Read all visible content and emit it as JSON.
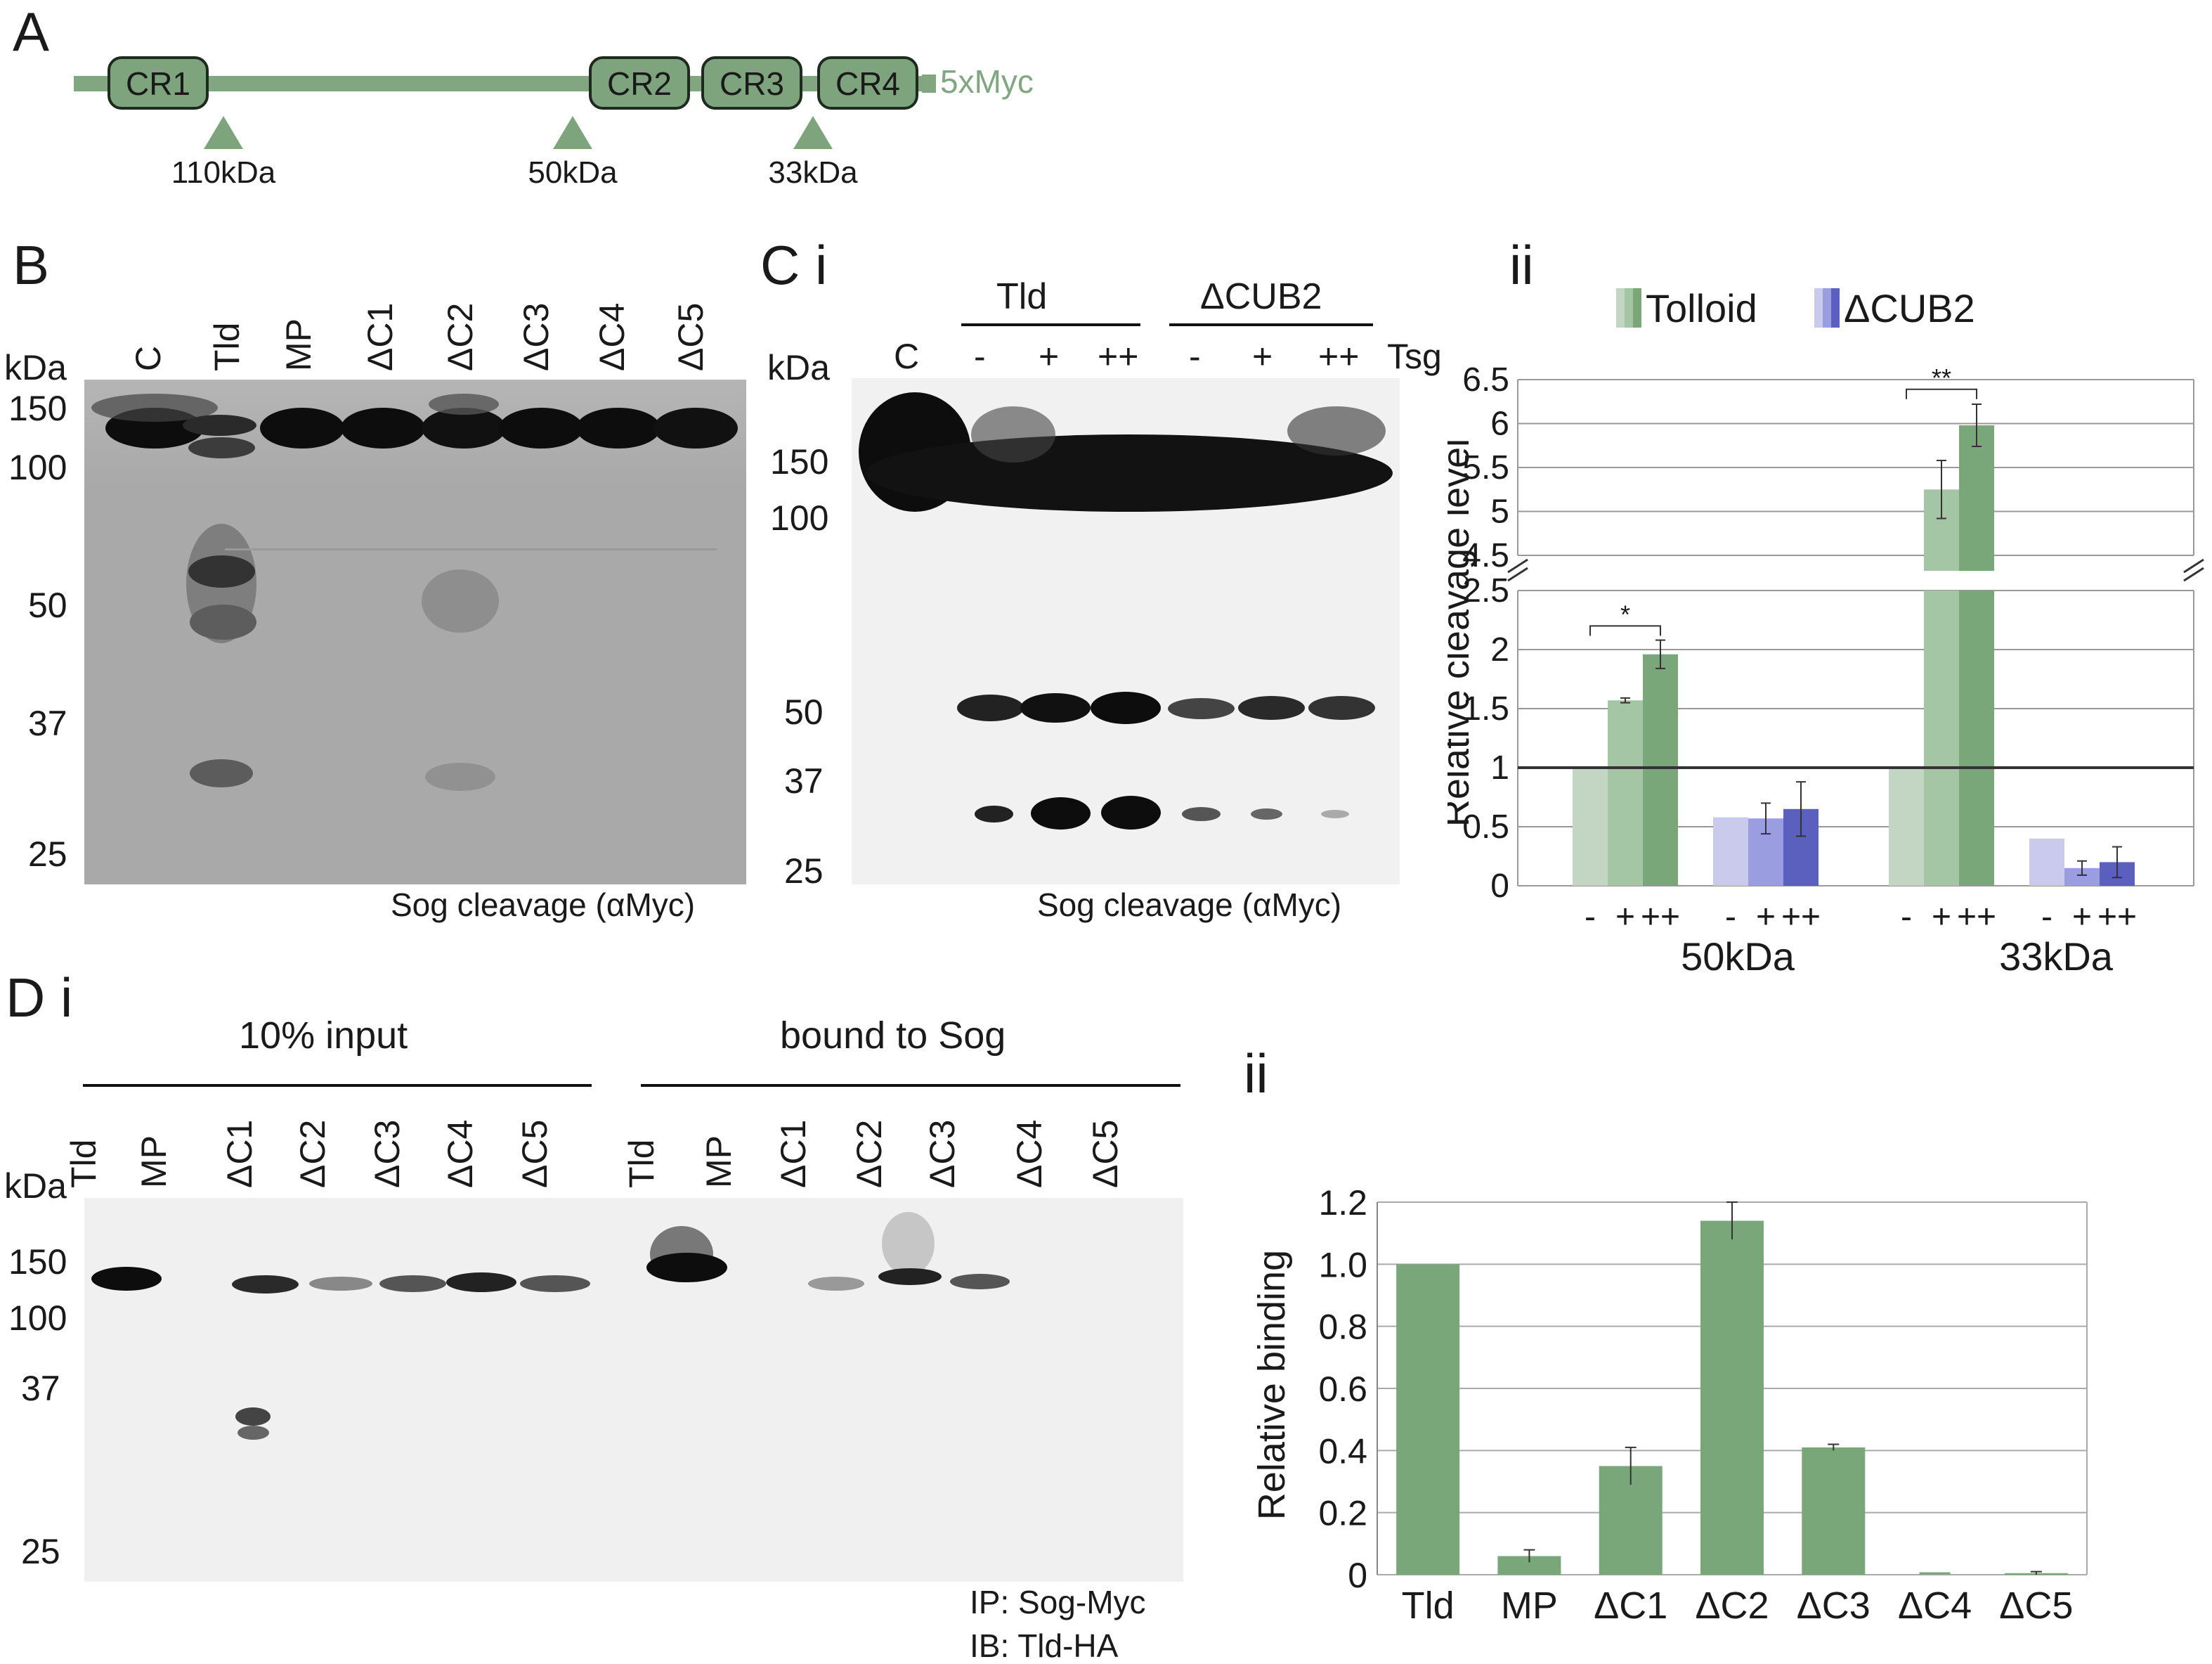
{
  "panelA": {
    "letter": "A",
    "domains": [
      "CR1",
      "CR2",
      "CR3",
      "CR4"
    ],
    "tag": "5xMyc",
    "sites": [
      "110kDa",
      "50kDa",
      "33kDa"
    ]
  },
  "panelB": {
    "letter": "B",
    "kda": "kDa",
    "lanes": [
      "C",
      "Tld",
      "MP",
      "ΔC1",
      "ΔC2",
      "ΔC3",
      "ΔC4",
      "ΔC5"
    ],
    "markers": [
      "150",
      "100",
      "50",
      "37",
      "25"
    ],
    "caption": "Sog cleavage (αMyc)"
  },
  "panelCi": {
    "letter": "C i",
    "kda": "kDa",
    "group1": "Tld",
    "group2": "ΔCUB2",
    "lanes": [
      "C",
      "-",
      "+",
      "++",
      "-",
      "+",
      "++"
    ],
    "tsg": "Tsg",
    "markers": [
      "150",
      "100",
      "50",
      "37",
      "25"
    ],
    "caption": "Sog cleavage (αMyc)"
  },
  "panelCii": {
    "letter": "ii",
    "legend": [
      "Tolloid",
      "ΔCUB2"
    ],
    "ylabel": "Relative cleavage level",
    "yticks_upper": [
      "6.5",
      "6",
      "5.5",
      "5",
      "4.5"
    ],
    "yticks_lower": [
      "2.5",
      "2",
      "1.5",
      "1",
      "0.5",
      "0"
    ],
    "sig1": "*",
    "sig2": "**",
    "xlabels": [
      "-",
      "+",
      "++",
      "-",
      "+",
      "++",
      "-",
      "+",
      "++",
      "-",
      "+",
      "++"
    ],
    "groups": [
      "50kDa",
      "33kDa"
    ]
  },
  "panelDi": {
    "letter": "D i",
    "group1": "10% input",
    "group2": "bound to Sog",
    "kda": "kDa",
    "lanes": [
      "Tld",
      "MP",
      "ΔC1",
      "ΔC2",
      "ΔC3",
      "ΔC4",
      "ΔC5",
      "Tld",
      "MP",
      "ΔC1",
      "ΔC2",
      "ΔC3",
      "ΔC4",
      "ΔC5"
    ],
    "markers": [
      "150",
      "100",
      "37",
      "25"
    ],
    "caption1": "IP: Sog-Myc",
    "caption2": "IB: Tld-HA"
  },
  "panelDii": {
    "letter": "ii",
    "ylabel": "Relative binding"
  },
  "chart_data": [
    {
      "type": "bar",
      "ylabel": "Relative cleavage level",
      "categories": [
        "50kDa",
        "33kDa"
      ],
      "axis_break": [
        2.5,
        4.5
      ],
      "ylim": [
        0,
        6.5
      ],
      "series": [
        {
          "name": "Tolloid",
          "conditions": [
            "-",
            "+",
            "++"
          ],
          "colors": [
            "#c3d6c3",
            "#a5c6a5",
            "#7aa77a"
          ],
          "values": [
            [
              1.0,
              1.57,
              1.96
            ],
            [
              1.0,
              5.25,
              5.98
            ]
          ],
          "errors": [
            [
              0,
              0.02,
              0.12
            ],
            [
              0,
              0.33,
              0.24
            ]
          ]
        },
        {
          "name": "ΔCUB2",
          "conditions": [
            "-",
            "+",
            "++"
          ],
          "colors": [
            "#c9caec",
            "#9a9ddf",
            "#5b5fbd"
          ],
          "values": [
            [
              0.58,
              0.57,
              0.65
            ],
            [
              0.4,
              0.15,
              0.2
            ]
          ],
          "errors": [
            [
              0,
              0.13,
              0.23
            ],
            [
              0,
              0.06,
              0.13
            ]
          ]
        }
      ],
      "reference_line": 1.0,
      "significance": [
        {
          "group": "50kDa",
          "label": "*"
        },
        {
          "group": "33kDa",
          "label": "**"
        }
      ],
      "grid": true,
      "legend": "top"
    },
    {
      "type": "bar",
      "ylabel": "Relative binding",
      "categories": [
        "Tld",
        "MP",
        "ΔC1",
        "ΔC2",
        "ΔC3",
        "ΔC4",
        "ΔC5"
      ],
      "values": [
        1.0,
        0.06,
        0.35,
        1.14,
        0.41,
        0.0,
        0.005
      ],
      "errors": [
        0,
        0.02,
        0.06,
        0.06,
        0.01,
        0.0,
        0.005
      ],
      "yticks": [
        "0",
        "0.2",
        "0.4",
        "0.6",
        "0.8",
        "1.0",
        "1.2"
      ],
      "ylim": [
        0,
        1.2
      ],
      "color": "#7aa77a",
      "grid": true
    }
  ]
}
